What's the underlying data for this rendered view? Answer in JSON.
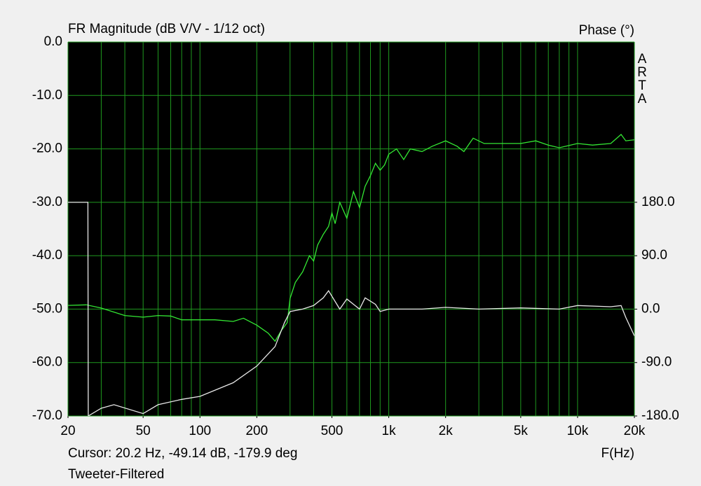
{
  "chart_data": {
    "type": "line",
    "title": "FR Magnitude (dB V/V - 1/12 oct)",
    "y2label": "Phase (°)",
    "watermark": "ARTA",
    "xlabel": "F(Hz)",
    "cursor": "Cursor: 20.2 Hz, -49.14 dB, -179.9 deg",
    "footer": "Tweeter-Filtered",
    "xscale": "log",
    "xlim": [
      20,
      20000
    ],
    "xticks": [
      20,
      50,
      100,
      200,
      500,
      {
        "value": 1000,
        "label": "1k"
      },
      {
        "value": 2000,
        "label": "2k"
      },
      {
        "value": 5000,
        "label": "5k"
      },
      {
        "value": 10000,
        "label": "10k"
      },
      {
        "value": 20000,
        "label": "20k"
      }
    ],
    "xgrid": [
      20,
      30,
      40,
      50,
      60,
      70,
      80,
      90,
      100,
      200,
      300,
      400,
      500,
      600,
      700,
      800,
      900,
      1000,
      2000,
      3000,
      4000,
      5000,
      6000,
      7000,
      8000,
      9000,
      10000,
      20000
    ],
    "ylim": [
      -70,
      0
    ],
    "yticks": [
      {
        "value": 0,
        "label": "0.0"
      },
      {
        "value": -10,
        "label": "-10.0"
      },
      {
        "value": -20,
        "label": "-20.0"
      },
      {
        "value": -30,
        "label": "-30.0"
      },
      {
        "value": -40,
        "label": "-40.0"
      },
      {
        "value": -50,
        "label": "-50.0"
      },
      {
        "value": -60,
        "label": "-60.0"
      },
      {
        "value": -70,
        "label": "-70.0"
      }
    ],
    "y2lim": [
      -180,
      450
    ],
    "y2ticks": [
      {
        "value": 180,
        "label": "180.0"
      },
      {
        "value": 90,
        "label": "90.0"
      },
      {
        "value": 0,
        "label": "0.0"
      },
      {
        "value": -90,
        "label": "-90.0"
      },
      {
        "value": -180,
        "label": "-180.0"
      }
    ],
    "grid": true,
    "grid_color": "#1f9a1f",
    "background": "#000000",
    "series": [
      {
        "color": "#33e633",
        "x": [
          20,
          25,
          30,
          40,
          50,
          60,
          70,
          80,
          100,
          120,
          150,
          170,
          200,
          230,
          250,
          270,
          290,
          300,
          320,
          350,
          380,
          400,
          420,
          450,
          480,
          500,
          520,
          550,
          600,
          650,
          700,
          750,
          800,
          850,
          900,
          950,
          1000,
          1100,
          1200,
          1300,
          1500,
          1700,
          2000,
          2300,
          2500,
          2800,
          3200,
          4000,
          5000,
          6000,
          7000,
          8000,
          10000,
          12000,
          15000,
          17000,
          18000,
          20000
        ],
        "values": [
          -49.3,
          -49.2,
          -49.8,
          -51.2,
          -51.5,
          -51.2,
          -51.3,
          -52,
          -52,
          -52,
          -52.3,
          -51.7,
          -53,
          -54.5,
          -56,
          -54,
          -52.5,
          -48,
          -45,
          -43,
          -40,
          -41,
          -38,
          -36,
          -34.5,
          -32,
          -34,
          -30,
          -33,
          -28,
          -31,
          -27,
          -25,
          -22.7,
          -24,
          -23,
          -21,
          -20,
          -22,
          -20,
          -20.5,
          -19.5,
          -18.5,
          -19.5,
          -20.5,
          -18,
          -19,
          -19,
          -19,
          -18.5,
          -19.3,
          -19.8,
          -19,
          -19.3,
          -19,
          -17.3,
          -18.5,
          -18.3
        ]
      },
      {
        "color": "#e8e8e8",
        "axis": "y2",
        "x": [
          20,
          25.5,
          25.6,
          30,
          35,
          50,
          60,
          80,
          100,
          150,
          200,
          250,
          280,
          300,
          350,
          400,
          450,
          480,
          550,
          600,
          700,
          750,
          850,
          900,
          1000,
          1500,
          2000,
          3000,
          5000,
          8000,
          10000,
          15000,
          17000,
          18000,
          20000
        ],
        "values": [
          180,
          180,
          -180,
          -167,
          -161,
          -176,
          -161,
          -152,
          -147,
          -124,
          -96,
          -63,
          -23,
          -4,
          0,
          6,
          19,
          31,
          0,
          17,
          0,
          19,
          8,
          -4,
          0,
          0,
          3,
          0,
          2,
          0,
          6,
          4,
          6,
          -14,
          -45
        ]
      }
    ]
  }
}
